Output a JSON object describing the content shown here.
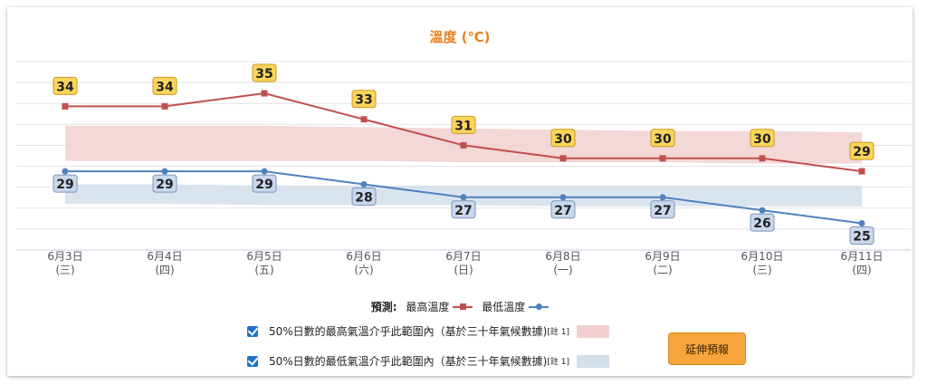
{
  "colors": {
    "max_line": "#c0504d",
    "min_line": "#4f81bd",
    "max_band": "#f2d0d0",
    "min_band": "#d4dfec",
    "max_label_bg": "#fbd55b",
    "min_label_bg": "#cad8ec",
    "title": "#e8821f",
    "button": "#f6a53c",
    "checkbox": "#1e73c9"
  },
  "chart_data": {
    "type": "line",
    "title": "溫度 (℃)",
    "categories": [
      {
        "date": "6月3日",
        "weekday": "(三)"
      },
      {
        "date": "6月4日",
        "weekday": "(四)"
      },
      {
        "date": "6月5日",
        "weekday": "(五)"
      },
      {
        "date": "6月6日",
        "weekday": "(六)"
      },
      {
        "date": "6月7日",
        "weekday": "(日)"
      },
      {
        "date": "6月8日",
        "weekday": "(一)"
      },
      {
        "date": "6月9日",
        "weekday": "(二)"
      },
      {
        "date": "6月10日",
        "weekday": "(三)"
      },
      {
        "date": "6月11日",
        "weekday": "(四)"
      }
    ],
    "series": [
      {
        "name": "最高溫度",
        "values": [
          34,
          34,
          35,
          33,
          31,
          30,
          30,
          30,
          29
        ]
      },
      {
        "name": "最低溫度",
        "values": [
          29,
          29,
          29,
          28,
          27,
          27,
          27,
          26,
          25
        ]
      }
    ],
    "bands": [
      {
        "low": [
          29.8,
          29.8,
          29.8,
          29.8,
          29.7,
          29.7,
          29.7,
          29.6,
          29.6
        ],
        "high": [
          32.5,
          32.5,
          32.5,
          32.4,
          32.3,
          32.2,
          32.1,
          32.1,
          32.0
        ]
      },
      {
        "low": [
          26.5,
          26.5,
          26.4,
          26.4,
          26.4,
          26.3,
          26.3,
          26.3,
          26.3
        ],
        "high": [
          28.0,
          28.0,
          27.9,
          27.9,
          27.9,
          27.9,
          27.9,
          27.9,
          27.9
        ]
      }
    ],
    "ylim": [
      23.5,
      38
    ],
    "grid": true,
    "legend_position": "bottom"
  },
  "legend": {
    "prefix": "預測:",
    "max_label": "最高溫度",
    "min_label": "最低溫度"
  },
  "ranges": {
    "max_text": "50%日數的最高氣溫介乎此範圍內（基於三十年氣候數據)",
    "min_text": "50%日數的最低氣溫介乎此範圍內（基於三十年氣候數據)",
    "note": "[註 1]"
  },
  "button": {
    "label": "延伸預報"
  }
}
